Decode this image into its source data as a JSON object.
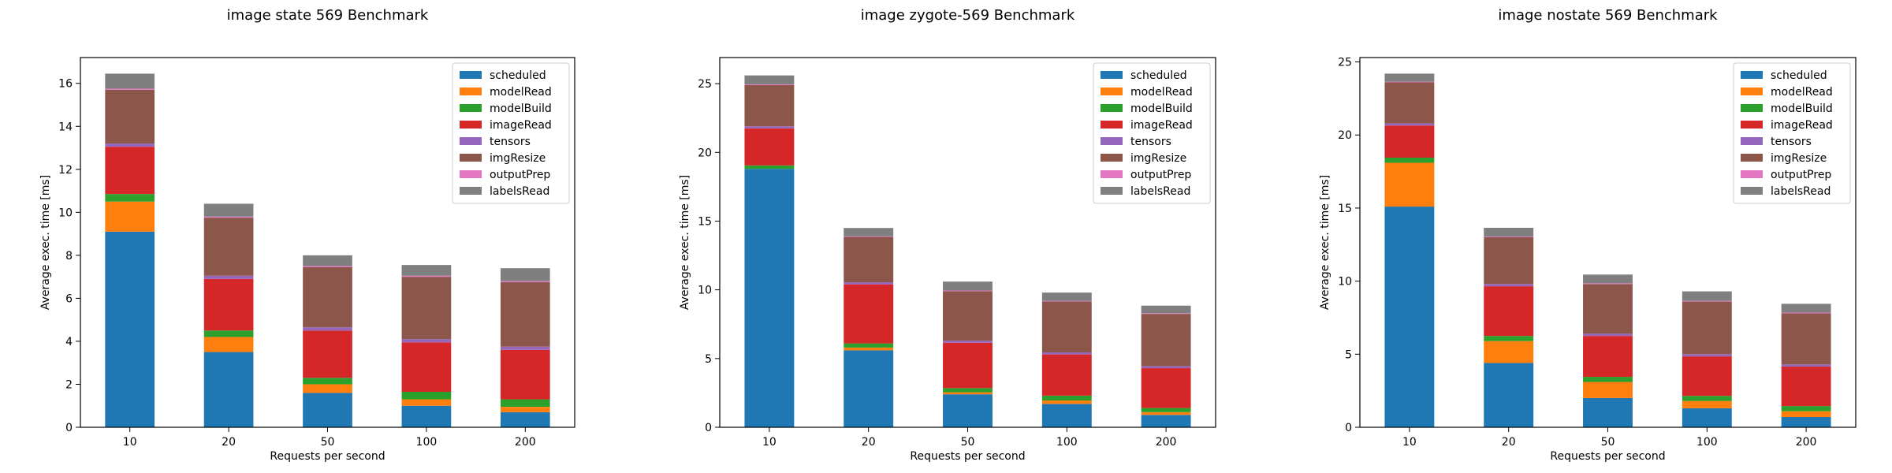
{
  "chart_data": [
    {
      "type": "bar",
      "stacked": true,
      "title": "image state 569 Benchmark",
      "xlabel": "Requests per second",
      "ylabel": "Average exec. time [ms]",
      "categories": [
        "10",
        "20",
        "50",
        "100",
        "200"
      ],
      "ylim": [
        0,
        17.2
      ],
      "yticks": [
        0,
        2,
        4,
        6,
        8,
        10,
        12,
        14,
        16
      ],
      "legend": "top-right",
      "grid": false,
      "series": [
        {
          "name": "scheduled",
          "color": "#1f77b4",
          "values": [
            9.1,
            3.5,
            1.6,
            1.0,
            0.7
          ]
        },
        {
          "name": "modelRead",
          "color": "#ff7f0e",
          "values": [
            1.4,
            0.7,
            0.4,
            0.3,
            0.25
          ]
        },
        {
          "name": "modelBuild",
          "color": "#2ca02c",
          "values": [
            0.35,
            0.3,
            0.3,
            0.35,
            0.35
          ]
        },
        {
          "name": "imageRead",
          "color": "#d62728",
          "values": [
            2.2,
            2.4,
            2.2,
            2.3,
            2.3
          ]
        },
        {
          "name": "tensors",
          "color": "#9467bd",
          "values": [
            0.15,
            0.15,
            0.15,
            0.15,
            0.15
          ]
        },
        {
          "name": "imgResize",
          "color": "#8c564b",
          "values": [
            2.5,
            2.7,
            2.8,
            2.9,
            3.0
          ]
        },
        {
          "name": "outputPrep",
          "color": "#e377c2",
          "values": [
            0.05,
            0.05,
            0.05,
            0.05,
            0.05
          ]
        },
        {
          "name": "labelsRead",
          "color": "#7f7f7f",
          "values": [
            0.7,
            0.6,
            0.5,
            0.5,
            0.6
          ]
        }
      ]
    },
    {
      "type": "bar",
      "stacked": true,
      "title": "image zygote-569 Benchmark",
      "xlabel": "Requests per second",
      "ylabel": "Average exec. time [ms]",
      "categories": [
        "10",
        "20",
        "50",
        "100",
        "200"
      ],
      "ylim": [
        0,
        26.9
      ],
      "yticks": [
        0,
        5,
        10,
        15,
        20,
        25
      ],
      "legend": "top-right",
      "grid": false,
      "series": [
        {
          "name": "scheduled",
          "color": "#1f77b4",
          "values": [
            18.8,
            5.6,
            2.4,
            1.7,
            0.9
          ]
        },
        {
          "name": "modelRead",
          "color": "#ff7f0e",
          "values": [
            0.0,
            0.2,
            0.15,
            0.25,
            0.2
          ]
        },
        {
          "name": "modelBuild",
          "color": "#2ca02c",
          "values": [
            0.25,
            0.3,
            0.3,
            0.35,
            0.3
          ]
        },
        {
          "name": "imageRead",
          "color": "#d62728",
          "values": [
            2.7,
            4.3,
            3.3,
            3.0,
            2.9
          ]
        },
        {
          "name": "tensors",
          "color": "#9467bd",
          "values": [
            0.15,
            0.15,
            0.15,
            0.15,
            0.15
          ]
        },
        {
          "name": "imgResize",
          "color": "#8c564b",
          "values": [
            3.0,
            3.3,
            3.6,
            3.7,
            3.8
          ]
        },
        {
          "name": "outputPrep",
          "color": "#e377c2",
          "values": [
            0.05,
            0.05,
            0.05,
            0.05,
            0.05
          ]
        },
        {
          "name": "labelsRead",
          "color": "#7f7f7f",
          "values": [
            0.65,
            0.6,
            0.65,
            0.6,
            0.55
          ]
        }
      ]
    },
    {
      "type": "bar",
      "stacked": true,
      "title": "image nostate 569 Benchmark",
      "xlabel": "Requests per second",
      "ylabel": "Average exec. time [ms]",
      "categories": [
        "10",
        "20",
        "50",
        "100",
        "200"
      ],
      "ylim": [
        0,
        25.3
      ],
      "yticks": [
        0,
        5,
        10,
        15,
        20,
        25
      ],
      "legend": "top-right",
      "grid": false,
      "series": [
        {
          "name": "scheduled",
          "color": "#1f77b4",
          "values": [
            15.1,
            4.4,
            2.0,
            1.3,
            0.7
          ]
        },
        {
          "name": "modelRead",
          "color": "#ff7f0e",
          "values": [
            3.0,
            1.5,
            1.1,
            0.5,
            0.4
          ]
        },
        {
          "name": "modelBuild",
          "color": "#2ca02c",
          "values": [
            0.35,
            0.35,
            0.35,
            0.35,
            0.35
          ]
        },
        {
          "name": "imageRead",
          "color": "#d62728",
          "values": [
            2.2,
            3.4,
            2.8,
            2.7,
            2.7
          ]
        },
        {
          "name": "tensors",
          "color": "#9467bd",
          "values": [
            0.15,
            0.15,
            0.15,
            0.15,
            0.15
          ]
        },
        {
          "name": "imgResize",
          "color": "#8c564b",
          "values": [
            2.8,
            3.2,
            3.4,
            3.6,
            3.5
          ]
        },
        {
          "name": "outputPrep",
          "color": "#e377c2",
          "values": [
            0.05,
            0.05,
            0.05,
            0.05,
            0.05
          ]
        },
        {
          "name": "labelsRead",
          "color": "#7f7f7f",
          "values": [
            0.55,
            0.6,
            0.6,
            0.65,
            0.6
          ]
        }
      ]
    }
  ]
}
